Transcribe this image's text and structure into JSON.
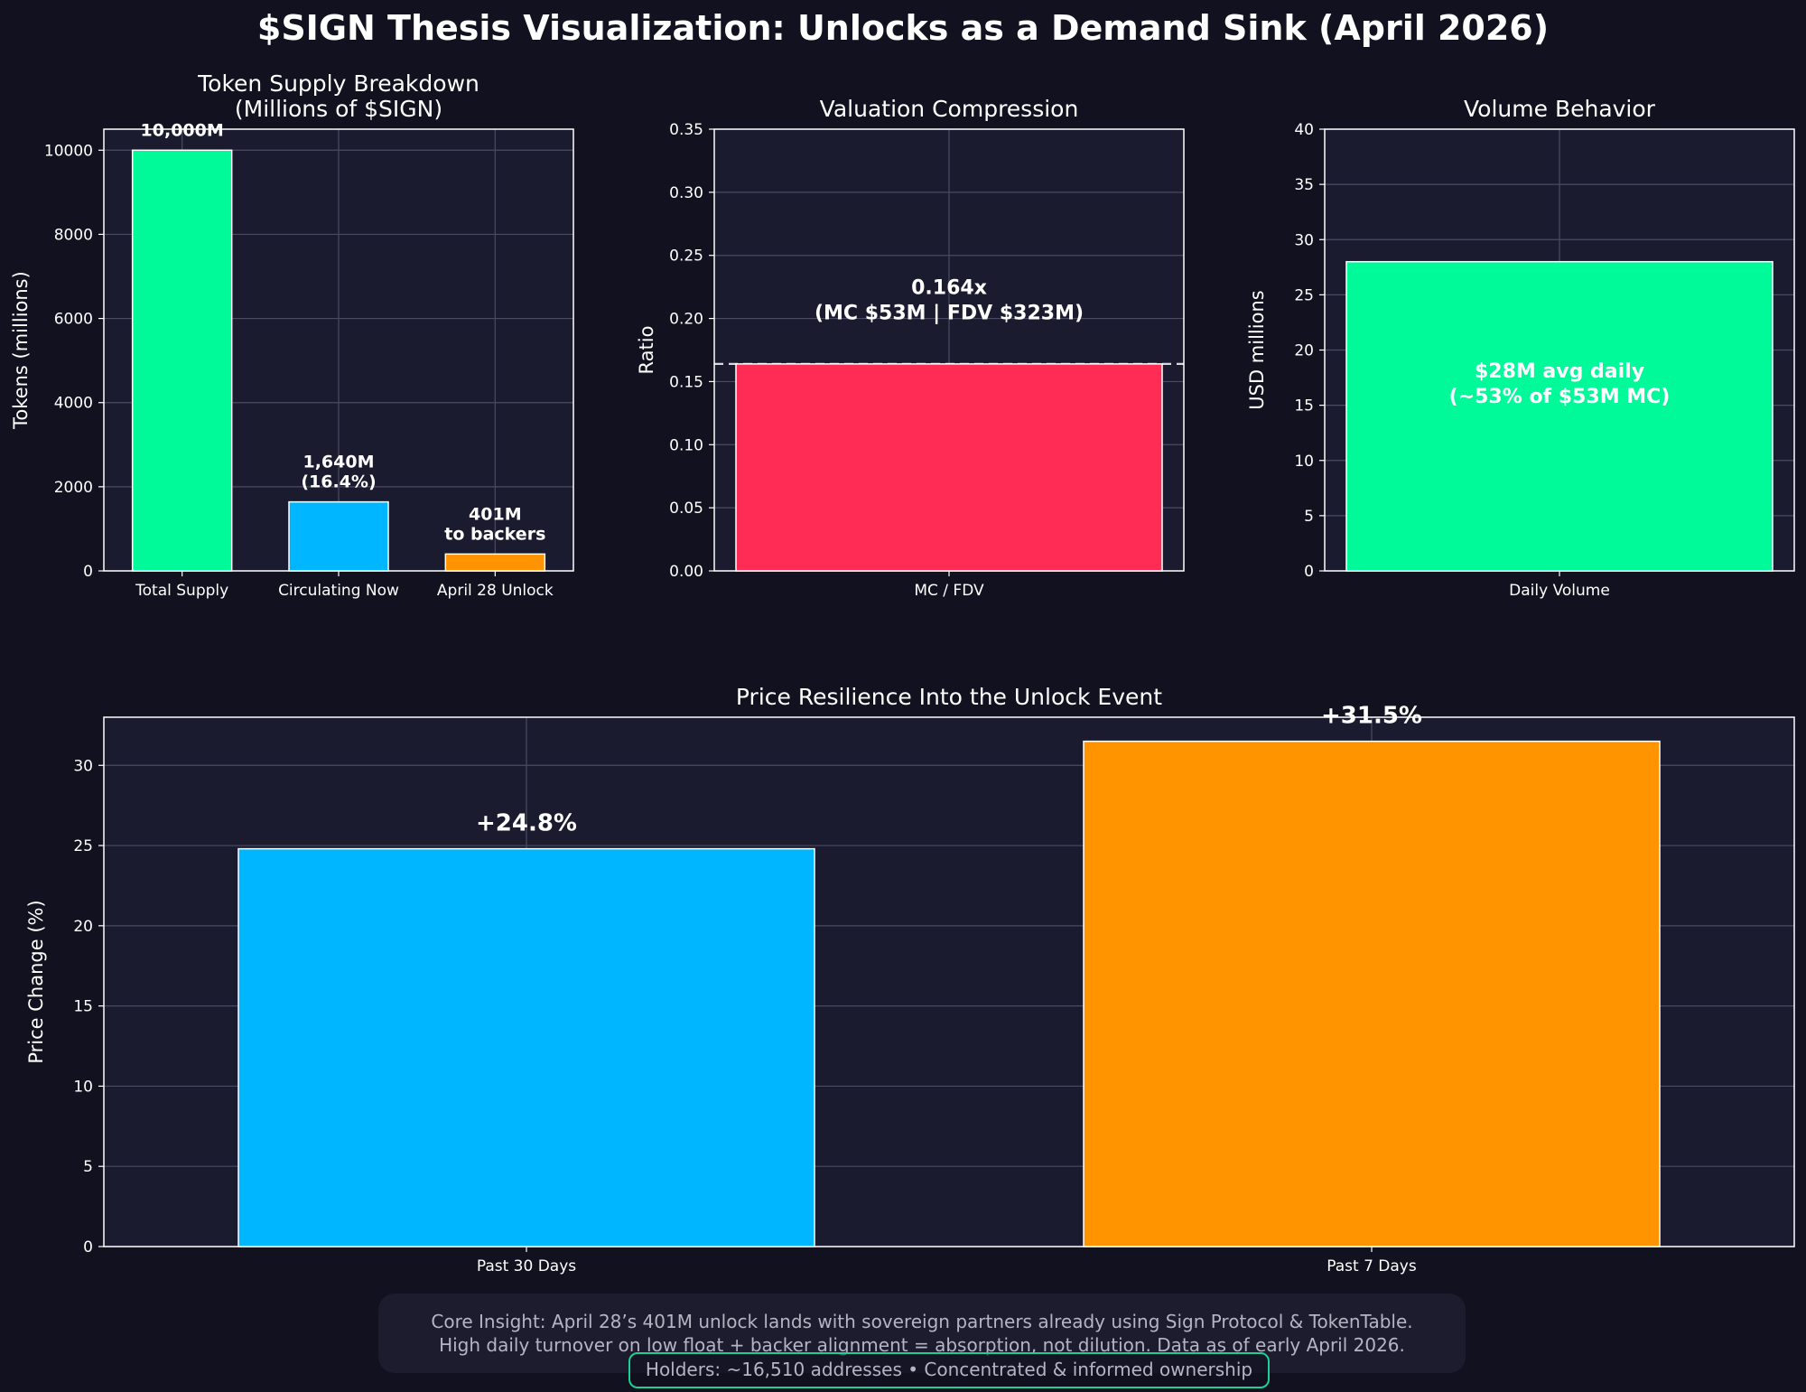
{
  "title": "$SIGN Thesis Visualization: Unlocks as a Demand Sink (April 2026)",
  "colors": {
    "background": "#11111f",
    "panel": "#1b1b30",
    "green": "#00fa9a",
    "blue": "#00b7ff",
    "orange": "#ff9400",
    "red": "#ff2d55",
    "grid": "#4a4a62",
    "text": "#ffffff"
  },
  "chart_data": [
    {
      "id": "supply",
      "type": "bar",
      "title": "Token Supply Breakdown\n(Millions of $SIGN)",
      "xlabel": "",
      "ylabel": "Tokens (millions)",
      "ylim": [
        0,
        10500
      ],
      "yticks": [
        0,
        2000,
        4000,
        6000,
        8000,
        10000
      ],
      "categories": [
        "Total Supply",
        "Circulating Now",
        "April 28 Unlock"
      ],
      "values": [
        10000,
        1640,
        401
      ],
      "bar_colors": [
        "green",
        "blue",
        "orange"
      ],
      "data_labels": [
        "10,000M",
        "1,640M\n(16.4%)",
        "401M\nto backers"
      ]
    },
    {
      "id": "valuation",
      "type": "bar",
      "title": "Valuation Compression",
      "xlabel": "",
      "ylabel": "Ratio",
      "ylim": [
        0,
        0.35
      ],
      "yticks": [
        0.0,
        0.05,
        0.1,
        0.15,
        0.2,
        0.25,
        0.3,
        0.35
      ],
      "categories": [
        "MC / FDV"
      ],
      "values": [
        0.164
      ],
      "bar_colors": [
        "red"
      ],
      "reference_line": 0.164,
      "annotation": "0.164x\n(MC $53M | FDV $323M)",
      "annotation_y": 0.215
    },
    {
      "id": "volume",
      "type": "bar",
      "title": "Volume Behavior",
      "xlabel": "",
      "ylabel": "USD millions",
      "ylim": [
        0,
        40
      ],
      "yticks": [
        0,
        5,
        10,
        15,
        20,
        25,
        30,
        35,
        40
      ],
      "categories": [
        "Daily Volume"
      ],
      "values": [
        28
      ],
      "bar_colors": [
        "green"
      ],
      "annotation": "$28M avg daily\n(~53% of $53M MC)",
      "annotation_y": 17
    },
    {
      "id": "price",
      "type": "bar",
      "title": "Price Resilience Into the Unlock Event",
      "xlabel": "",
      "ylabel": "Price Change (%)",
      "ylim": [
        0,
        33
      ],
      "yticks": [
        0,
        5,
        10,
        15,
        20,
        25,
        30
      ],
      "categories": [
        "Past 30 Days",
        "Past 7 Days"
      ],
      "values": [
        24.8,
        31.5
      ],
      "bar_colors": [
        "blue",
        "orange"
      ],
      "data_labels": [
        "+24.8%",
        "+31.5%"
      ]
    }
  ],
  "footer": {
    "line1": "Core Insight: April 28’s 401M unlock lands with sovereign partners already using Sign Protocol & TokenTable.",
    "line2": "High daily turnover on low float + backer alignment = absorption, not dilution. Data as of early April 2026.",
    "holders": "Holders: ~16,510 addresses • Concentrated & informed ownership"
  }
}
